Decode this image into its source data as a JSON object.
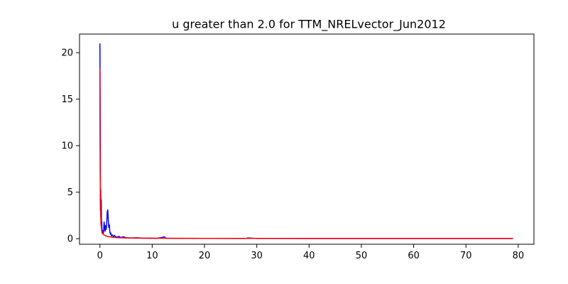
{
  "chart_data": {
    "type": "line",
    "title": "u greater than 2.0  for TTM_NRELvector_Jun2012",
    "xlabel": "",
    "ylabel": "",
    "xlim": [
      -3.9,
      83.0
    ],
    "ylim": [
      -0.6,
      22.0
    ],
    "xticks": [
      0,
      10,
      20,
      30,
      40,
      50,
      60,
      70,
      80
    ],
    "yticks": [
      0,
      5,
      10,
      15,
      20
    ],
    "grid": false,
    "legend": "none",
    "series": [
      {
        "color": "#0000ff",
        "x": [
          0.0,
          0.05,
          0.1,
          0.15,
          0.2,
          0.25,
          0.3,
          0.35,
          0.4,
          0.5,
          0.6,
          0.7,
          0.8,
          0.9,
          1.0,
          1.1,
          1.2,
          1.3,
          1.4,
          1.5,
          1.6,
          1.7,
          1.8,
          1.9,
          2.0,
          2.1,
          2.2,
          2.4,
          2.6,
          2.8,
          3.0,
          3.3,
          3.6,
          4.0,
          4.5,
          5.0,
          6.0,
          7.0,
          8.0,
          9.0,
          10.0,
          11.0,
          12.0,
          12.3,
          12.6,
          13.0,
          15.0,
          20.0,
          28.0,
          28.3,
          30.0,
          40.0,
          50.0,
          60.0,
          70.0,
          79.0
        ],
        "y": [
          21.0,
          14.3,
          3.0,
          5.3,
          2.5,
          4.2,
          1.5,
          1.8,
          0.6,
          0.9,
          0.5,
          0.7,
          1.8,
          1.2,
          0.8,
          1.4,
          1.0,
          1.6,
          2.9,
          3.1,
          2.0,
          1.2,
          1.5,
          0.7,
          0.5,
          0.6,
          0.3,
          0.4,
          0.2,
          0.35,
          0.2,
          0.15,
          0.25,
          0.12,
          0.2,
          0.1,
          0.08,
          0.1,
          0.06,
          0.05,
          0.05,
          0.04,
          0.15,
          0.2,
          0.05,
          0.04,
          0.03,
          0.03,
          0.02,
          0.08,
          0.02,
          0.02,
          0.02,
          0.02,
          0.02,
          0.02
        ]
      },
      {
        "color": "#ff0000",
        "x": [
          0.0,
          0.02,
          0.05,
          0.1,
          0.15,
          0.2,
          0.3,
          0.4,
          0.5,
          0.6,
          0.8,
          1.0,
          1.3,
          1.6,
          2.0,
          2.5,
          3.0,
          4.0,
          5.0,
          7.0,
          10.0,
          15.0,
          20.0,
          30.0,
          40.0,
          50.0,
          60.0,
          70.0,
          79.0
        ],
        "y": [
          18.3,
          12.0,
          7.5,
          4.0,
          2.4,
          1.6,
          1.0,
          0.75,
          0.6,
          0.5,
          0.4,
          0.33,
          0.27,
          0.22,
          0.18,
          0.15,
          0.12,
          0.1,
          0.08,
          0.06,
          0.05,
          0.04,
          0.03,
          0.03,
          0.02,
          0.02,
          0.02,
          0.02,
          0.02
        ]
      }
    ]
  }
}
